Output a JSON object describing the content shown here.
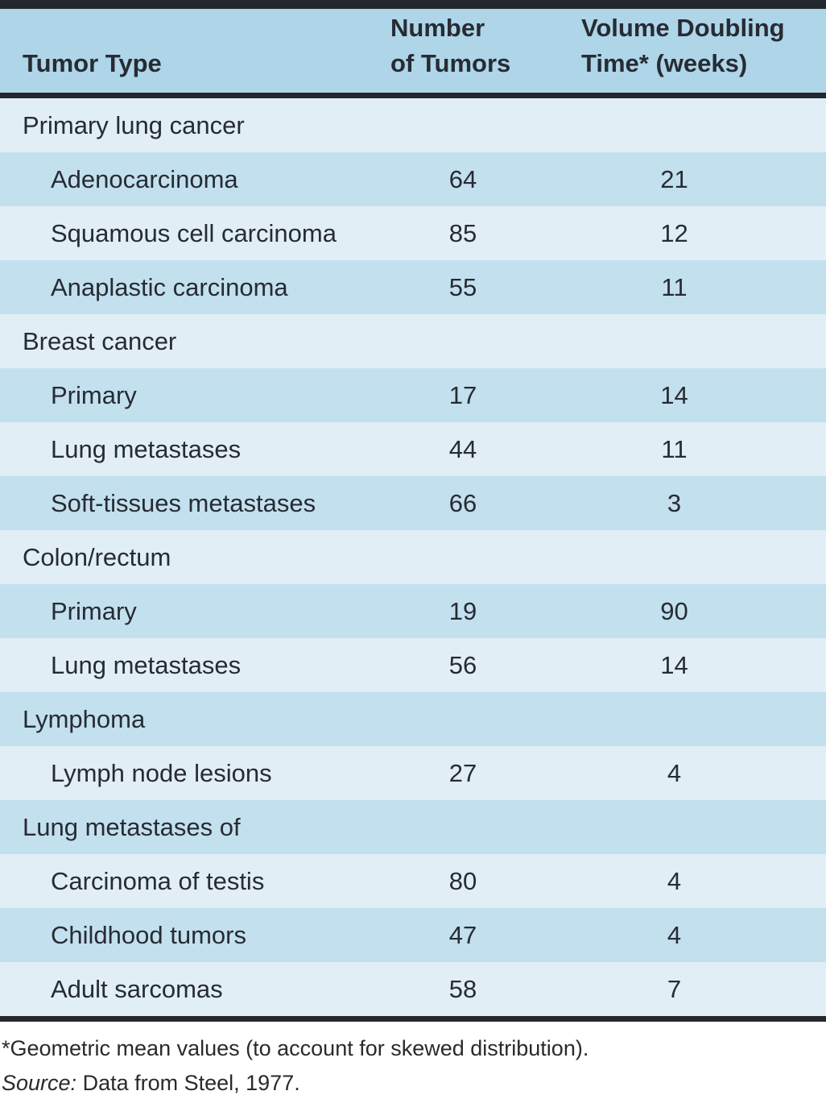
{
  "table": {
    "header": {
      "col1": "Tumor Type",
      "col2_line1": "Number",
      "col2_line2": "of Tumors",
      "col3_line1": "Volume Doubling",
      "col3_line2": "Time* (weeks)"
    },
    "rows": [
      {
        "type": "group",
        "label": "Primary lung cancer",
        "tumors": "",
        "doubling_time": ""
      },
      {
        "type": "item",
        "label": "Adenocarcinoma",
        "tumors": "64",
        "doubling_time": "21"
      },
      {
        "type": "item",
        "label": "Squamous cell carcinoma",
        "tumors": "85",
        "doubling_time": "12"
      },
      {
        "type": "item",
        "label": "Anaplastic carcinoma",
        "tumors": "55",
        "doubling_time": "11"
      },
      {
        "type": "group",
        "label": "Breast cancer",
        "tumors": "",
        "doubling_time": ""
      },
      {
        "type": "item",
        "label": "Primary",
        "tumors": "17",
        "doubling_time": "14"
      },
      {
        "type": "item",
        "label": "Lung metastases",
        "tumors": "44",
        "doubling_time": "11"
      },
      {
        "type": "item",
        "label": "Soft-tissues metastases",
        "tumors": "66",
        "doubling_time": "3"
      },
      {
        "type": "group",
        "label": "Colon/rectum",
        "tumors": "",
        "doubling_time": ""
      },
      {
        "type": "item",
        "label": "Primary",
        "tumors": "19",
        "doubling_time": "90"
      },
      {
        "type": "item",
        "label": "Lung metastases",
        "tumors": "56",
        "doubling_time": "14"
      },
      {
        "type": "group",
        "label": "Lymphoma",
        "tumors": "",
        "doubling_time": ""
      },
      {
        "type": "item",
        "label": "Lymph node lesions",
        "tumors": "27",
        "doubling_time": "4"
      },
      {
        "type": "group",
        "label": "Lung metastases of",
        "tumors": "",
        "doubling_time": ""
      },
      {
        "type": "item",
        "label": "Carcinoma of testis",
        "tumors": "80",
        "doubling_time": "4"
      },
      {
        "type": "item",
        "label": "Childhood tumors",
        "tumors": "47",
        "doubling_time": "4"
      },
      {
        "type": "item",
        "label": "Adult sarcomas",
        "tumors": "58",
        "doubling_time": "7"
      }
    ]
  },
  "footnotes": {
    "asterisk_note": "*Geometric mean values (to account for skewed distribution).",
    "source_label": "Source:",
    "source_text": " Data from Steel, 1977."
  },
  "colors": {
    "header_bg": "#aed5e8",
    "row_light": "#e1eef5",
    "row_dark": "#c3e0ef",
    "border": "#23272e",
    "text": "#272b33"
  }
}
